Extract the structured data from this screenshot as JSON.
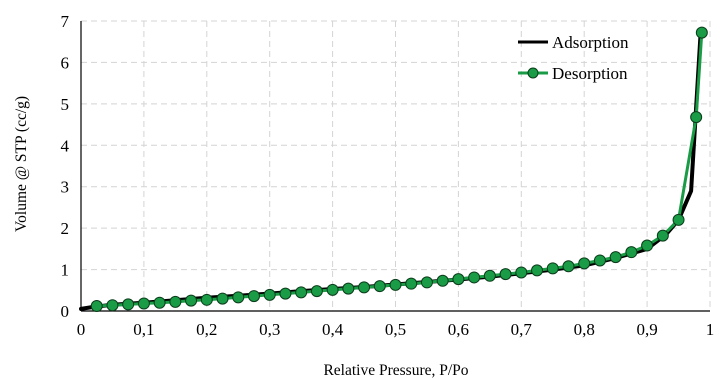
{
  "chart_data": {
    "type": "line",
    "xlabel": "Relative Pressure, P/Po",
    "ylabel": "Volume @ STP (cc/g)",
    "xlim": [
      0,
      1
    ],
    "ylim": [
      0,
      7
    ],
    "x_ticks": [
      "0",
      "0,1",
      "0,2",
      "0,3",
      "0,4",
      "0,5",
      "0,6",
      "0,7",
      "0,8",
      "0,9",
      "1"
    ],
    "y_ticks": [
      "0",
      "1",
      "2",
      "3",
      "4",
      "5",
      "6",
      "7"
    ],
    "grid": "dashed",
    "legend_position": "top-right",
    "series": [
      {
        "name": "Adsorption",
        "color": "#000000",
        "marker": "none",
        "x": [
          0.0,
          0.02,
          0.05,
          0.08,
          0.1,
          0.15,
          0.2,
          0.25,
          0.3,
          0.35,
          0.4,
          0.45,
          0.5,
          0.55,
          0.6,
          0.65,
          0.7,
          0.75,
          0.8,
          0.85,
          0.9,
          0.93,
          0.95,
          0.97,
          0.985
        ],
        "y": [
          0.05,
          0.1,
          0.15,
          0.18,
          0.2,
          0.26,
          0.32,
          0.37,
          0.42,
          0.48,
          0.53,
          0.58,
          0.64,
          0.7,
          0.76,
          0.83,
          0.91,
          1.0,
          1.1,
          1.28,
          1.5,
          1.85,
          2.2,
          2.9,
          6.7
        ]
      },
      {
        "name": "Desorption",
        "color": "#1a9b45",
        "marker": "circle",
        "x": [
          0.025,
          0.05,
          0.075,
          0.1,
          0.125,
          0.15,
          0.175,
          0.2,
          0.225,
          0.25,
          0.275,
          0.3,
          0.325,
          0.35,
          0.375,
          0.4,
          0.425,
          0.45,
          0.475,
          0.5,
          0.525,
          0.55,
          0.575,
          0.6,
          0.625,
          0.65,
          0.675,
          0.7,
          0.725,
          0.75,
          0.775,
          0.8,
          0.825,
          0.85,
          0.875,
          0.9,
          0.925,
          0.95,
          0.978,
          0.987
        ],
        "y": [
          0.12,
          0.14,
          0.16,
          0.18,
          0.2,
          0.22,
          0.25,
          0.27,
          0.3,
          0.33,
          0.36,
          0.39,
          0.42,
          0.45,
          0.48,
          0.51,
          0.54,
          0.57,
          0.6,
          0.63,
          0.66,
          0.69,
          0.73,
          0.77,
          0.81,
          0.85,
          0.89,
          0.93,
          0.98,
          1.03,
          1.08,
          1.15,
          1.22,
          1.3,
          1.42,
          1.58,
          1.82,
          2.2,
          4.68,
          6.72
        ]
      }
    ]
  }
}
